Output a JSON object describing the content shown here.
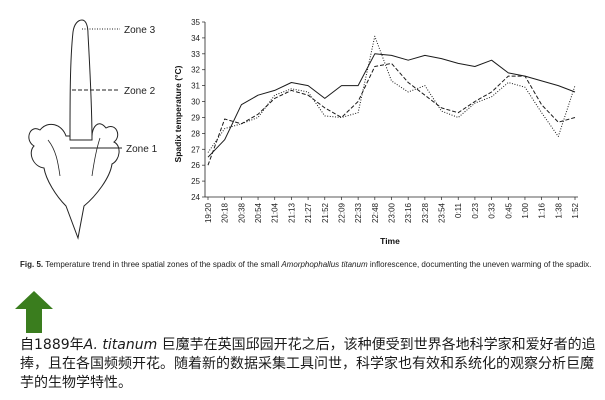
{
  "diagram": {
    "zones": [
      "Zone 3",
      "Zone 2",
      "Zone 1"
    ]
  },
  "chart_data": {
    "type": "line",
    "xlabel": "Time",
    "ylabel": "Spadix temperature (°C)",
    "ylim": [
      24,
      35
    ],
    "yticks": [
      24,
      25,
      26,
      27,
      28,
      29,
      30,
      31,
      32,
      33,
      34,
      35
    ],
    "x": [
      "19:20",
      "20:18",
      "20:38",
      "20:54",
      "21:04",
      "21:13",
      "21:27",
      "21:52",
      "22:09",
      "22:33",
      "22:48",
      "23:00",
      "23:16",
      "23:28",
      "23:54",
      "0:11",
      "0:23",
      "0:33",
      "0:45",
      "1:00",
      "1:16",
      "1:38",
      "1:52"
    ],
    "grid": false,
    "legend": "none",
    "series": [
      {
        "style": "solid",
        "values": [
          26.5,
          27.6,
          29.8,
          30.4,
          30.7,
          31.2,
          31.0,
          30.2,
          31.0,
          31.0,
          33.0,
          32.9,
          32.6,
          32.9,
          32.7,
          32.4,
          32.2,
          32.6,
          31.8,
          31.6,
          31.3,
          31.0,
          30.6
        ]
      },
      {
        "style": "dashed",
        "values": [
          26.0,
          28.9,
          28.6,
          29.2,
          30.2,
          30.7,
          30.4,
          29.6,
          29.0,
          30.0,
          32.2,
          32.4,
          31.2,
          30.4,
          29.6,
          29.3,
          30.0,
          30.6,
          31.6,
          31.6,
          29.8,
          28.7,
          29.0
        ]
      },
      {
        "style": "dotted",
        "values": [
          26.8,
          28.3,
          28.6,
          29.0,
          30.4,
          30.8,
          30.6,
          29.1,
          29.0,
          29.3,
          34.1,
          31.3,
          30.6,
          31.0,
          29.4,
          29.0,
          29.9,
          30.3,
          31.2,
          30.9,
          29.3,
          27.8,
          31.0
        ]
      }
    ]
  },
  "caption": {
    "fig_label": "Fig. 5.",
    "text_before": " Temperature trend in three spatial zones of the spadix of the small ",
    "species": "Amorphophallus titanum",
    "text_after": " inflorescence, documenting the uneven warming of the spadix."
  },
  "arrow": {
    "color": "#3a7d1e"
  },
  "body_text": {
    "part1": "自1889年",
    "species": "A. titanum",
    "part2": " 巨魔芋在英国邱园开花之后，该种便受到世界各地科学家和爱好者的追捧，且在各国频频开花。随着新的数据采集工具问世，科学家也有效和系统化的观察分析巨魔芋的生物学特性。"
  }
}
